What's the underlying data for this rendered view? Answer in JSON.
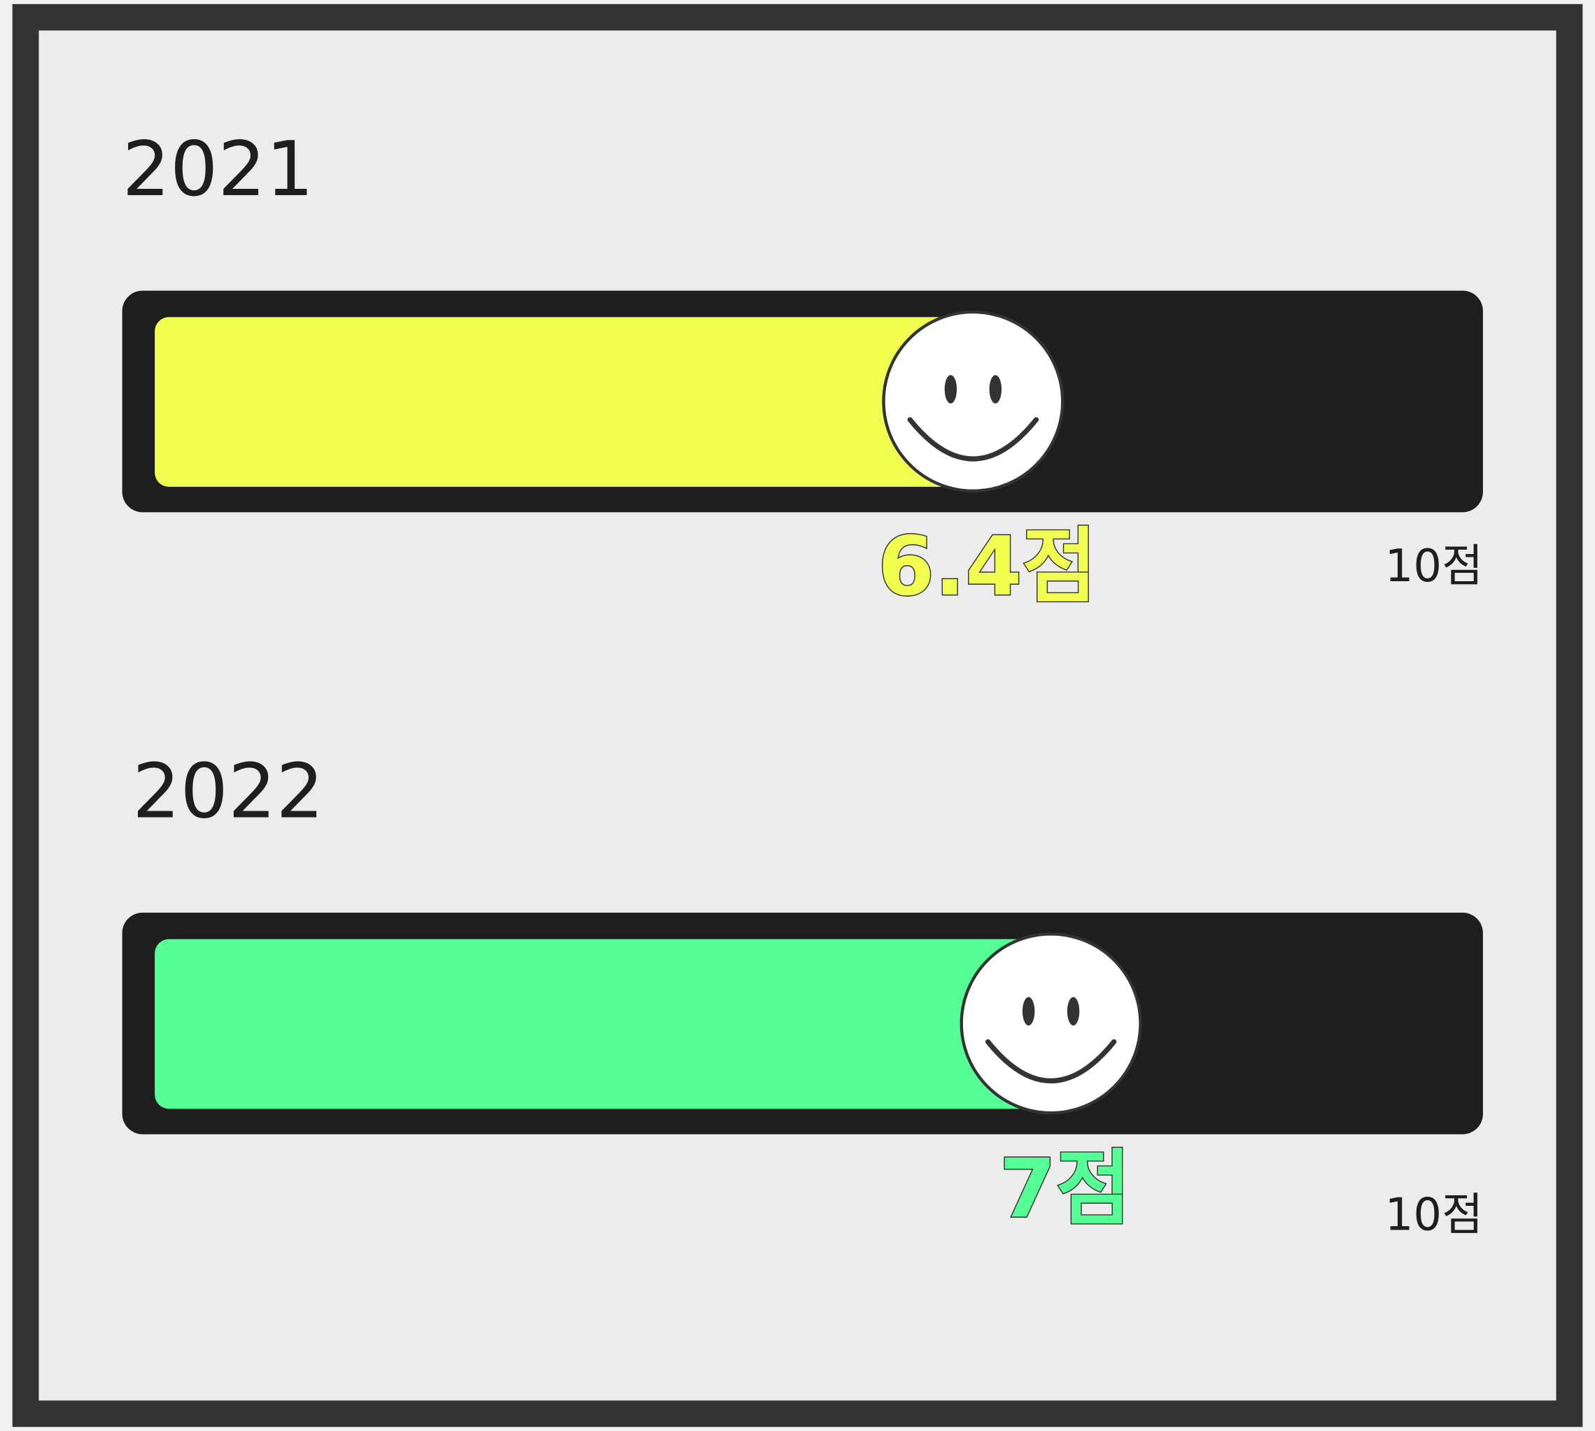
{
  "gauges": [
    {
      "year": "2021",
      "value": 6.4,
      "value_label": "6.4점",
      "max": 10,
      "max_label": "10점",
      "color": "#f0ff50"
    },
    {
      "year": "2022",
      "value": 7,
      "value_label": "7점",
      "max": 10,
      "max_label": "10점",
      "color": "#55ff95"
    }
  ]
}
